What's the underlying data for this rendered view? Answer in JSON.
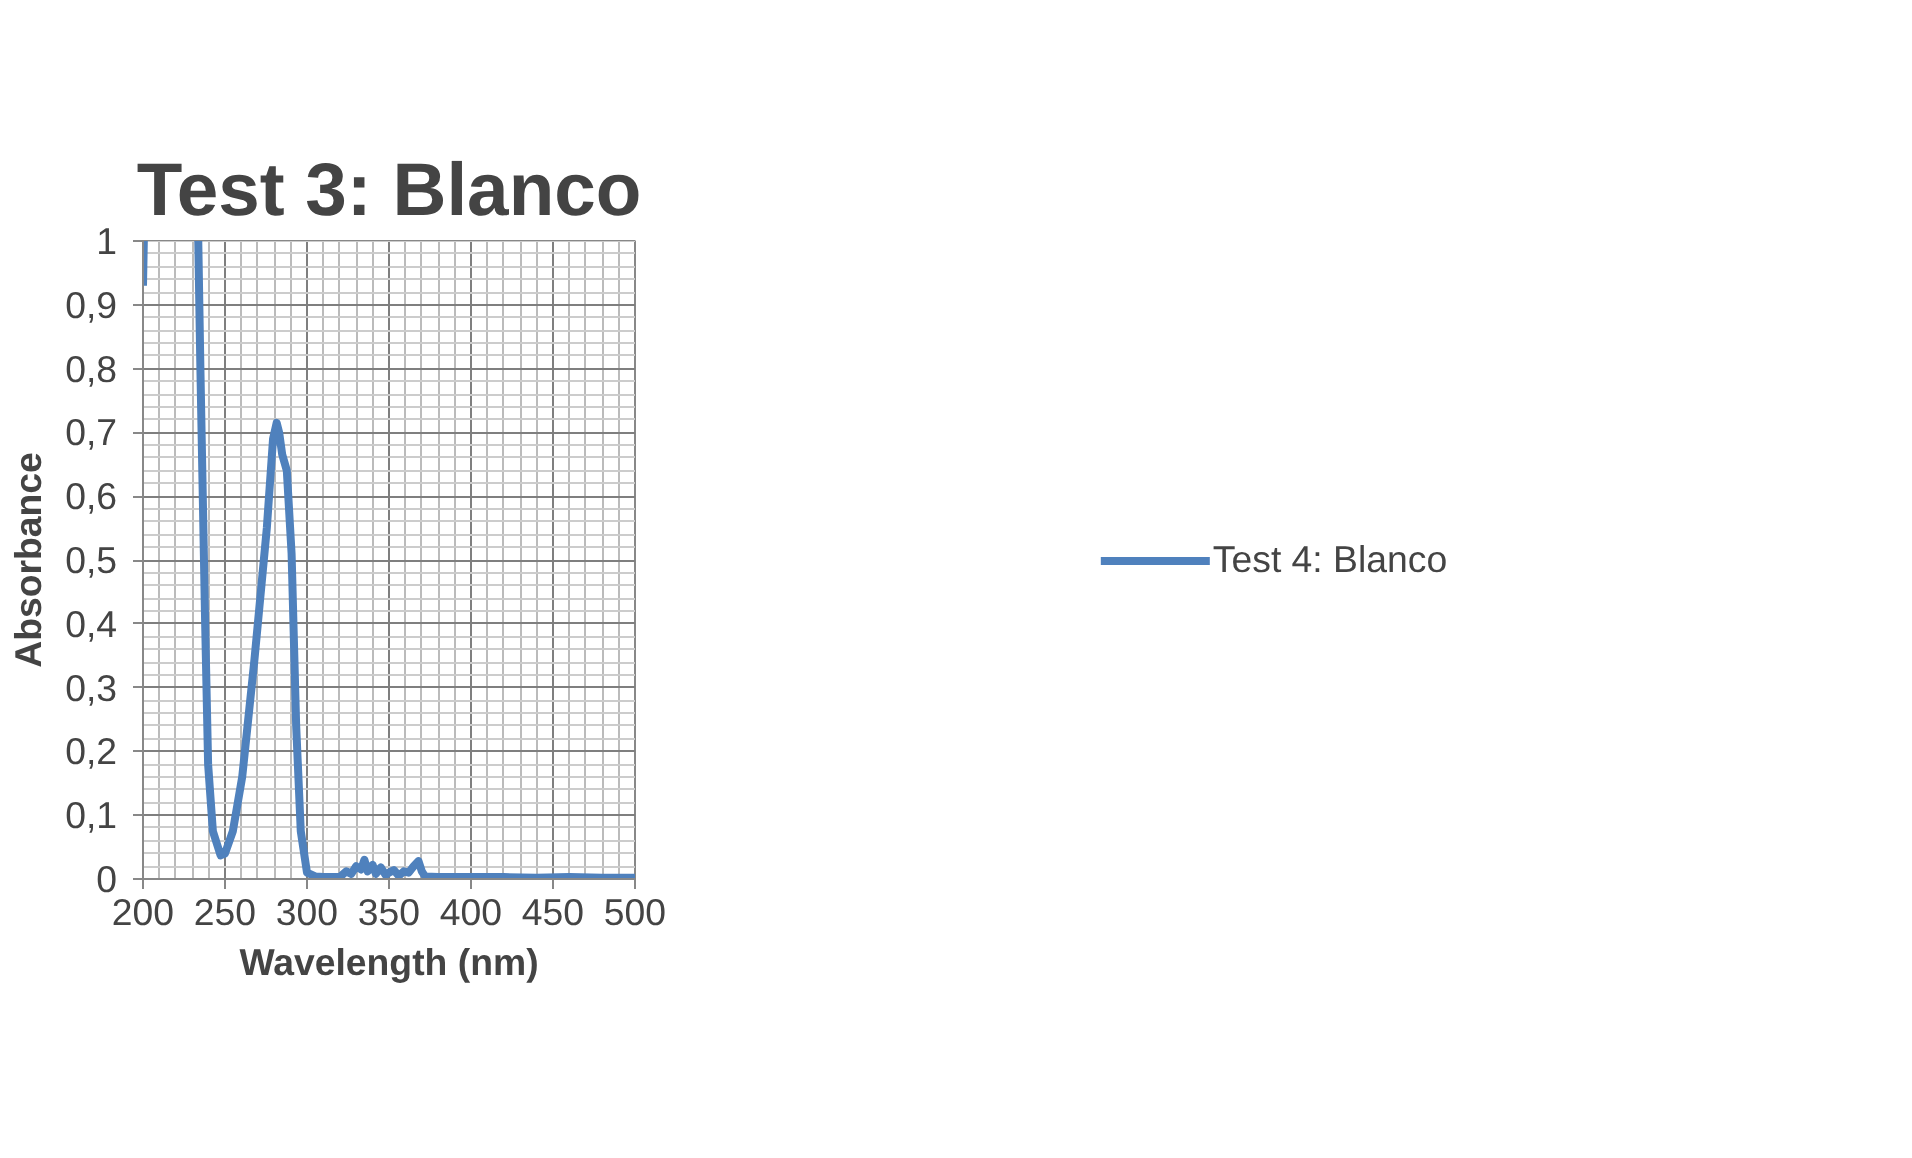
{
  "chart_data": {
    "type": "line",
    "title": "Test 3: Blanco",
    "xlabel": "Wavelength (nm)",
    "ylabel": "Absorbance",
    "xlim": [
      200,
      500
    ],
    "xticks": [
      200,
      250,
      300,
      350,
      400,
      450,
      500
    ],
    "ylim": [
      0,
      1
    ],
    "yticks": [
      0,
      {
        "value": 0.1,
        "label": "0,1"
      },
      {
        "value": 0.2,
        "label": "0,2"
      },
      {
        "value": 0.3,
        "label": "0,3"
      },
      {
        "value": 0.4,
        "label": "0,4"
      },
      {
        "value": 0.5,
        "label": "0,5"
      },
      {
        "value": 0.6,
        "label": "0,6"
      },
      {
        "value": 0.7,
        "label": "0,7"
      },
      {
        "value": 0.8,
        "label": "0,8"
      },
      {
        "value": 0.9,
        "label": "0,9"
      },
      1
    ],
    "grid": true,
    "legend": "right",
    "marker": "none",
    "line_style": "solid",
    "series": [
      {
        "name": "Test 4: Blanco",
        "color": "#4f81bd",
        "x": [
          200,
          200.5,
          201,
          233.7,
          235,
          237.9,
          239.7,
          242.6,
          247.3,
          250,
          254.8,
          260.5,
          268,
          275.5,
          279.3,
          281.5,
          283,
          284.9,
          287.7,
          290.6,
          293.4,
          296.2,
          300,
          305,
          310,
          320,
          324,
          327,
          330,
          333,
          335,
          337,
          340,
          342,
          345,
          348,
          350,
          353,
          356,
          359,
          362,
          365,
          368,
          370,
          372,
          380,
          400,
          420,
          440,
          460,
          480,
          500
        ],
        "values": [
          0.93,
          1.0,
          null,
          1.0,
          0.8,
          0.4,
          0.18,
          0.075,
          0.037,
          0.04,
          0.075,
          0.16,
          0.345,
          0.55,
          0.69,
          0.715,
          0.7,
          0.665,
          0.64,
          0.51,
          0.24,
          0.075,
          0.01,
          0.004,
          0.003,
          0.003,
          0.012,
          0.008,
          0.02,
          0.015,
          0.03,
          0.012,
          0.022,
          0.008,
          0.018,
          0.006,
          0.01,
          0.014,
          0.005,
          0.012,
          0.01,
          0.02,
          0.028,
          0.012,
          0.004,
          0.003,
          0.003,
          0.003,
          0.002,
          0.003,
          0.002,
          0.002
        ]
      }
    ]
  }
}
